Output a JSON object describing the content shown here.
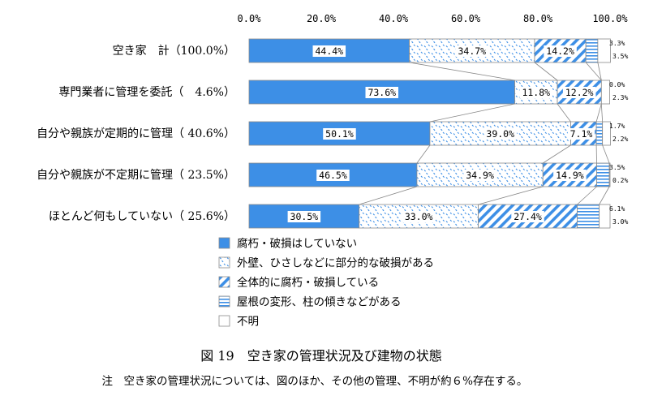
{
  "chart_data": {
    "type": "bar",
    "orientation": "horizontal-stacked-100",
    "x_ticks": [
      "0.0%",
      "20.0%",
      "40.0%",
      "60.0%",
      "80.0%",
      "100.0%"
    ],
    "xlim": [
      0,
      100
    ],
    "grid": false,
    "legend_placement": "bottom-left",
    "categories": [
      "空き家　計（100.0%）",
      "専門業者に管理を委託（　4.6%）",
      "自分や親族が定期的に管理（ 40.6%）",
      "自分や親族が不定期に管理（ 23.5%）",
      "ほとんど何もしていない（ 25.6%）"
    ],
    "series": [
      {
        "name": "腐朽・破損はしていない",
        "pattern": "solid",
        "color": "#3d8fe6",
        "values": [
          44.4,
          73.6,
          50.1,
          46.5,
          30.5
        ],
        "labels": [
          "44.4%",
          "73.6%",
          "50.1%",
          "46.5%",
          "30.5%"
        ]
      },
      {
        "name": "外壁、ひさしなどに部分的な破損がある",
        "pattern": "dots",
        "color": "#3d8fe6",
        "values": [
          34.7,
          11.8,
          39.0,
          34.9,
          33.0
        ],
        "labels": [
          "34.7%",
          "11.8%",
          "39.0%",
          "34.9%",
          "33.0%"
        ]
      },
      {
        "name": "全体的に腐朽・破損している",
        "pattern": "diagonal",
        "color": "#3d8fe6",
        "values": [
          14.2,
          12.2,
          7.1,
          14.9,
          27.4
        ],
        "labels": [
          "14.2%",
          "12.2%",
          "7.1%",
          "14.9%",
          "27.4%"
        ]
      },
      {
        "name": "屋根の変形、柱の傾きなどがある",
        "pattern": "horizontal",
        "color": "#3d8fe6",
        "values": [
          3.3,
          0.0,
          1.7,
          3.5,
          6.1
        ],
        "labels": [
          "3.3%",
          "0.0%",
          "1.7%",
          "3.5%",
          "6.1%"
        ]
      },
      {
        "name": "不明",
        "pattern": "none",
        "color": "#ffffff",
        "values": [
          3.5,
          2.3,
          2.2,
          0.2,
          3.0
        ],
        "labels": [
          "3.5%",
          "2.3%",
          "2.2%",
          "0.2%",
          "3.0%"
        ]
      }
    ],
    "caption": "図 19　空き家の管理状況及び建物の状態",
    "note": "注　空き家の管理状況については、図のほか、その他の管理、不明が約６%存在する。"
  }
}
